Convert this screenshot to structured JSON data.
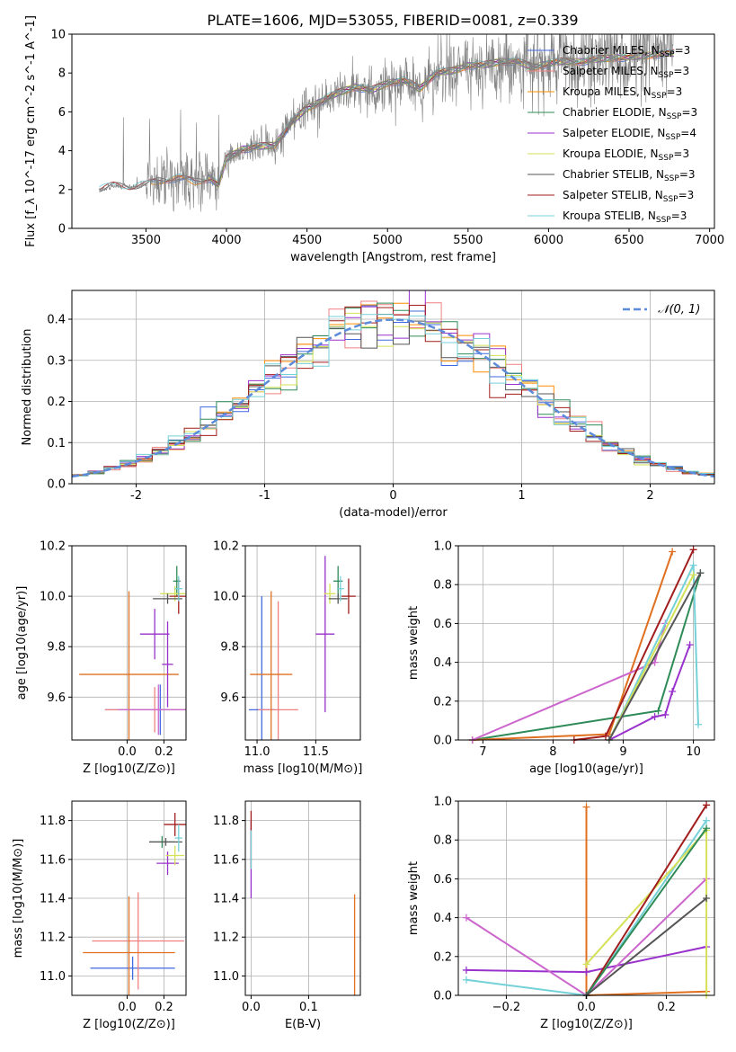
{
  "figure": {
    "title": "PLATE=1606, MJD=53055, FIBERID=0081, z=0.339"
  },
  "chart_data": [
    {
      "id": "spectrum",
      "type": "line",
      "xlabel": "wavelength [Angstrom, rest frame]",
      "ylabel": "Flux [f_λ 10^-17 erg cm^-2 s^-1 A^-1]",
      "xlim": [
        3040,
        7030
      ],
      "ylim": [
        0,
        10
      ],
      "xticks": [
        3500,
        4000,
        4500,
        5000,
        5500,
        6000,
        6500,
        7000
      ],
      "yticks": [
        0,
        2,
        4,
        6,
        8,
        10
      ],
      "grid": false,
      "legend_position": "top-right",
      "data_anchors": [
        [
          3210,
          2.0
        ],
        [
          3300,
          2.2
        ],
        [
          3400,
          2.1
        ],
        [
          3500,
          2.25
        ],
        [
          3600,
          2.5
        ],
        [
          3700,
          2.6
        ],
        [
          3800,
          2.4
        ],
        [
          3900,
          2.6
        ],
        [
          3950,
          2.2
        ],
        [
          4000,
          3.6
        ],
        [
          4100,
          4.1
        ],
        [
          4200,
          4.2
        ],
        [
          4300,
          4.3
        ],
        [
          4400,
          5.4
        ],
        [
          4500,
          6.2
        ],
        [
          4600,
          6.6
        ],
        [
          4700,
          7.0
        ],
        [
          4800,
          7.3
        ],
        [
          4900,
          7.1
        ],
        [
          5000,
          7.5
        ],
        [
          5100,
          7.6
        ],
        [
          5200,
          7.2
        ],
        [
          5300,
          8.0
        ],
        [
          5400,
          8.1
        ],
        [
          5500,
          8.4
        ],
        [
          5600,
          8.4
        ],
        [
          5700,
          8.6
        ],
        [
          5800,
          8.6
        ],
        [
          5900,
          8.3
        ],
        [
          6000,
          8.5
        ],
        [
          6100,
          8.6
        ],
        [
          6200,
          8.6
        ],
        [
          6300,
          8.7
        ],
        [
          6400,
          8.8
        ],
        [
          6500,
          8.8
        ],
        [
          6600,
          8.9
        ],
        [
          6700,
          9.0
        ],
        [
          6770,
          9.0
        ]
      ],
      "series": [
        {
          "name": "Chabrier MILES, N_SSP=3",
          "color": "#4169e1",
          "range": [
            3530,
            6780
          ]
        },
        {
          "name": "Salpeter MILES, N_SSP=3",
          "color": "#f08080",
          "range": [
            3530,
            6780
          ]
        },
        {
          "name": "Kroupa MILES, N_SSP=3",
          "color": "#ff8c00",
          "range": [
            3530,
            6780
          ]
        },
        {
          "name": "Chabrier ELODIE, N_SSP=3",
          "color": "#2e8b57",
          "range": [
            3880,
            6780
          ]
        },
        {
          "name": "Salpeter ELODIE, N_SSP=4",
          "color": "#9932cc",
          "range": [
            3880,
            6780
          ]
        },
        {
          "name": "Kroupa ELODIE, N_SSP=3",
          "color": "#d4e157",
          "range": [
            3880,
            6780
          ]
        },
        {
          "name": "Chabrier STELIB, N_SSP=3",
          "color": "#555555",
          "range": [
            3210,
            6780
          ]
        },
        {
          "name": "Salpeter STELIB, N_SSP=3",
          "color": "#a11d1d",
          "range": [
            3210,
            6780
          ]
        },
        {
          "name": "Kroupa STELIB, N_SSP=3",
          "color": "#74d1d8",
          "range": [
            3210,
            6780
          ]
        }
      ],
      "data_series_name": "data",
      "data_color": "#808080"
    },
    {
      "id": "residuals",
      "type": "area",
      "xlabel": "(data-model)/error",
      "ylabel": "Normed distribution",
      "xlim": [
        -2.5,
        2.5
      ],
      "ylim": [
        0,
        0.47
      ],
      "xticks": [
        -2,
        -1,
        0,
        1,
        2
      ],
      "yticks": [
        0.0,
        0.1,
        0.2,
        0.3,
        0.4
      ],
      "grid": true,
      "legend_position": "top-right",
      "bins": 40,
      "gaussian": {
        "name": "𝒩(0, 1)",
        "mean": 0,
        "sigma": 1,
        "color": "#5b8bd9"
      },
      "series_colors": [
        "#4169e1",
        "#f08080",
        "#ff8c00",
        "#2e8b57",
        "#9932cc",
        "#d4e157",
        "#555555",
        "#a11d1d",
        "#74d1d8"
      ]
    },
    {
      "id": "age-vs-Z",
      "type": "scatter",
      "xlabel": "Z [log10(Z/Z⊙)]",
      "ylabel": "age [log10(age/yr)]",
      "xlim": [
        -0.3,
        0.32
      ],
      "ylim": [
        9.43,
        10.2
      ],
      "xticks": [
        0.0,
        0.2
      ],
      "yticks": [
        9.6,
        9.8,
        10.0,
        10.2
      ],
      "grid": true,
      "points": [
        {
          "x": 0.18,
          "y": 9.55,
          "xerr": 0.3,
          "yerr": 0.1,
          "color": "#4169e1"
        },
        {
          "x": 0.15,
          "y": 9.55,
          "xerr": 0.27,
          "yerr": 0.09,
          "color": "#f08080"
        },
        {
          "x": 0.01,
          "y": 9.69,
          "xerr": 0.27,
          "yerr": 0.33,
          "color": "#e07020"
        },
        {
          "x": 0.27,
          "y": 10.06,
          "xerr": 0.02,
          "yerr": 0.06,
          "color": "#2e8b57"
        },
        {
          "x": 0.15,
          "y": 9.85,
          "xerr": 0.08,
          "yerr": 0.1,
          "color": "#9932cc"
        },
        {
          "x": 0.26,
          "y": 10.01,
          "xerr": 0.08,
          "yerr": 0.03,
          "color": "#d4e157"
        },
        {
          "x": 0.22,
          "y": 9.99,
          "xerr": 0.08,
          "yerr": 0.02,
          "color": "#555555"
        },
        {
          "x": 0.28,
          "y": 10.0,
          "xerr": 0.05,
          "yerr": 0.07,
          "color": "#a11d1d"
        },
        {
          "x": 0.28,
          "y": 10.03,
          "xerr": 0.02,
          "yerr": 0.05,
          "color": "#74d1d8"
        },
        {
          "x": 0.22,
          "y": 9.73,
          "xerr": 0.03,
          "yerr": 0.17,
          "color": "#9932cc"
        },
        {
          "x": 0.17,
          "y": 9.55,
          "xerr": 0.22,
          "yerr": 0.1,
          "color": "#cc66cc"
        }
      ]
    },
    {
      "id": "age-vs-mass",
      "type": "scatter",
      "xlabel": "mass [log10(M/M⊙)]",
      "ylabel": "",
      "xlim": [
        10.9,
        11.88
      ],
      "ylim": [
        9.43,
        10.2
      ],
      "xticks": [
        11.0,
        11.5
      ],
      "yticks": [
        9.6,
        9.8,
        10.0,
        10.2
      ],
      "grid": true,
      "points": [
        {
          "x": 11.04,
          "y": 9.55,
          "xerr": 0.11,
          "yerr": 0.45,
          "color": "#4169e1"
        },
        {
          "x": 11.18,
          "y": 9.55,
          "xerr": 0.17,
          "yerr": 0.43,
          "color": "#f08080"
        },
        {
          "x": 11.12,
          "y": 9.69,
          "xerr": 0.18,
          "yerr": 0.33,
          "color": "#e07020"
        },
        {
          "x": 11.69,
          "y": 10.06,
          "xerr": 0.04,
          "yerr": 0.06,
          "color": "#2e8b57"
        },
        {
          "x": 11.58,
          "y": 9.85,
          "xerr": 0.08,
          "yerr": 0.31,
          "color": "#9932cc"
        },
        {
          "x": 11.62,
          "y": 10.01,
          "xerr": 0.05,
          "yerr": 0.04,
          "color": "#d4e157"
        },
        {
          "x": 11.69,
          "y": 9.99,
          "xerr": 0.08,
          "yerr": 0.02,
          "color": "#555555"
        },
        {
          "x": 11.78,
          "y": 10.0,
          "xerr": 0.06,
          "yerr": 0.07,
          "color": "#a11d1d"
        },
        {
          "x": 11.71,
          "y": 10.03,
          "xerr": 0.03,
          "yerr": 0.05,
          "color": "#74d1d8"
        }
      ]
    },
    {
      "id": "mass-weight-vs-age",
      "type": "line",
      "xlabel": "age [log10(age/yr)]",
      "ylabel": "mass weight",
      "xlim": [
        6.65,
        10.3
      ],
      "ylim": [
        0,
        1.0
      ],
      "xticks": [
        7,
        8,
        9,
        10
      ],
      "yticks": [
        0.0,
        0.2,
        0.4,
        0.6,
        0.8,
        1.0
      ],
      "grid": true,
      "series": [
        {
          "color": "#2e8b57",
          "points": [
            [
              6.85,
              0.0
            ],
            [
              9.5,
              0.15
            ],
            [
              10.1,
              0.86
            ]
          ]
        },
        {
          "color": "#e07020",
          "points": [
            [
              6.85,
              0.0
            ],
            [
              8.8,
              0.03
            ],
            [
              9.7,
              0.97
            ]
          ]
        },
        {
          "color": "#cc66cc",
          "points": [
            [
              6.85,
              0.0
            ],
            [
              9.45,
              0.4
            ],
            [
              9.6,
              0.6
            ]
          ]
        },
        {
          "color": "#9932cc",
          "points": [
            [
              8.8,
              0.0
            ],
            [
              9.45,
              0.12
            ],
            [
              9.6,
              0.13
            ],
            [
              9.7,
              0.25
            ],
            [
              9.95,
              0.49
            ]
          ]
        },
        {
          "color": "#a11d1d",
          "points": [
            [
              8.3,
              0.0
            ],
            [
              8.75,
              0.02
            ],
            [
              10.0,
              0.98
            ]
          ]
        },
        {
          "color": "#74d1d8",
          "points": [
            [
              8.8,
              0.0
            ],
            [
              10.0,
              0.9
            ],
            [
              10.07,
              0.08
            ]
          ]
        },
        {
          "color": "#d4e157",
          "points": [
            [
              8.8,
              0.0
            ],
            [
              10.0,
              0.85
            ]
          ]
        },
        {
          "color": "#555555",
          "points": [
            [
              8.8,
              0.0
            ],
            [
              10.1,
              0.86
            ]
          ]
        }
      ]
    },
    {
      "id": "mass-vs-Z",
      "type": "scatter",
      "xlabel": "Z [log10(Z/Z⊙)]",
      "ylabel": "mass [log10(M/M⊙)]",
      "xlim": [
        -0.3,
        0.32
      ],
      "ylim": [
        10.9,
        11.9
      ],
      "xticks": [
        0.0,
        0.2
      ],
      "yticks": [
        11.0,
        11.2,
        11.4,
        11.6,
        11.8
      ],
      "grid": true,
      "points": [
        {
          "x": 0.03,
          "y": 11.04,
          "xerr": 0.23,
          "yerr": 0.06,
          "color": "#4169e1"
        },
        {
          "x": 0.06,
          "y": 11.18,
          "xerr": 0.25,
          "yerr": 0.25,
          "color": "#f08080"
        },
        {
          "x": 0.01,
          "y": 11.12,
          "xerr": 0.25,
          "yerr": 0.29,
          "color": "#e07020"
        },
        {
          "x": 0.19,
          "y": 11.69,
          "xerr": 0.07,
          "yerr": 0.03,
          "color": "#2e8b57"
        },
        {
          "x": 0.22,
          "y": 11.58,
          "xerr": 0.06,
          "yerr": 0.06,
          "color": "#9932cc"
        },
        {
          "x": 0.26,
          "y": 11.62,
          "xerr": 0.05,
          "yerr": 0.05,
          "color": "#d4e157"
        },
        {
          "x": 0.21,
          "y": 11.69,
          "xerr": 0.09,
          "yerr": 0.02,
          "color": "#555555"
        },
        {
          "x": 0.26,
          "y": 11.78,
          "xerr": 0.06,
          "yerr": 0.06,
          "color": "#a11d1d"
        },
        {
          "x": 0.28,
          "y": 11.71,
          "xerr": 0.02,
          "yerr": 0.07,
          "color": "#74d1d8"
        }
      ]
    },
    {
      "id": "mass-vs-ebv",
      "type": "scatter",
      "xlabel": "E(B-V)",
      "ylabel": "",
      "xlim": [
        -0.01,
        0.19
      ],
      "ylim": [
        10.9,
        11.9
      ],
      "xticks": [
        0.0,
        0.1
      ],
      "yticks": [
        11.0,
        11.2,
        11.4,
        11.6,
        11.8
      ],
      "grid": true,
      "points": [
        {
          "x": 0.0,
          "y": 11.6,
          "xerr": 0.0,
          "yerr": 0.2,
          "color": "#9932cc"
        },
        {
          "x": 0.0,
          "y": 11.7,
          "xerr": 0.0,
          "yerr": 0.15,
          "color": "#a11d1d"
        },
        {
          "x": 0.0,
          "y": 11.65,
          "xerr": 0.0,
          "yerr": 0.1,
          "color": "#74d1d8"
        },
        {
          "x": 0.18,
          "y": 11.12,
          "xerr": 0.0,
          "yerr": 0.3,
          "color": "#e07020"
        }
      ]
    },
    {
      "id": "mass-weight-vs-Z",
      "type": "line",
      "xlabel": "Z [log10(Z/Z⊙)]",
      "ylabel": "mass weight",
      "xlim": [
        -0.32,
        0.32
      ],
      "ylim": [
        0,
        1.0
      ],
      "xticks": [
        -0.2,
        0.0,
        0.2
      ],
      "yticks": [
        0.0,
        0.2,
        0.4,
        0.6,
        0.8,
        1.0
      ],
      "grid": true,
      "series": [
        {
          "color": "#e07020",
          "points": [
            [
              0.0,
              0.97
            ],
            [
              0.0,
              0.0
            ],
            [
              0.3,
              0.02
            ]
          ]
        },
        {
          "color": "#9932cc",
          "points": [
            [
              -0.3,
              0.13
            ],
            [
              0.0,
              0.12
            ],
            [
              0.3,
              0.25
            ]
          ]
        },
        {
          "color": "#cc66cc",
          "points": [
            [
              -0.3,
              0.4
            ],
            [
              0.0,
              0.0
            ],
            [
              0.3,
              0.6
            ]
          ]
        },
        {
          "color": "#74d1d8",
          "points": [
            [
              -0.3,
              0.08
            ],
            [
              0.0,
              0.0
            ],
            [
              0.3,
              0.9
            ]
          ]
        },
        {
          "color": "#d4e157",
          "points": [
            [
              0.0,
              0.16
            ],
            [
              0.3,
              0.85
            ],
            [
              0.3,
              0.0
            ]
          ]
        },
        {
          "color": "#a11d1d",
          "points": [
            [
              0.0,
              0.0
            ],
            [
              0.3,
              0.98
            ]
          ]
        },
        {
          "color": "#2e8b57",
          "points": [
            [
              0.0,
              0.0
            ],
            [
              0.3,
              0.86
            ]
          ]
        },
        {
          "color": "#555555",
          "points": [
            [
              0.0,
              0.0
            ],
            [
              0.3,
              0.5
            ]
          ]
        }
      ]
    }
  ]
}
